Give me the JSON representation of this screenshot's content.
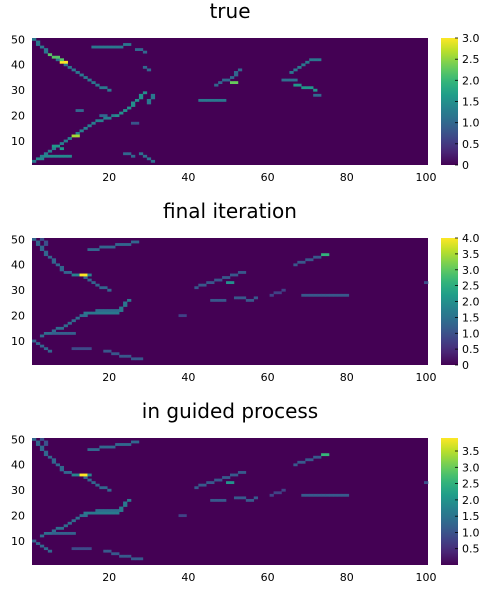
{
  "chart_data": [
    {
      "type": "heatmap",
      "title": "true",
      "x_ticks": [
        20,
        40,
        60,
        80,
        100
      ],
      "y_ticks": [
        10,
        20,
        30,
        40,
        50
      ],
      "xlim": [
        1,
        100
      ],
      "ylim": [
        1,
        50
      ],
      "colormap": "viridis",
      "clim": [
        0,
        3.0
      ],
      "colorbar_ticks": [
        "0",
        "0.5",
        "1.0",
        "1.5",
        "2.0",
        "2.5",
        "3.0"
      ],
      "colorbar_tick_values": [
        0,
        0.5,
        1.0,
        1.5,
        2.0,
        2.5,
        3.0
      ],
      "background_value": 0,
      "strokes": [
        {
          "pts": [
            [
              1,
              50
            ],
            [
              3,
              47
            ],
            [
              5,
              44
            ],
            [
              8,
              41
            ],
            [
              11,
              38
            ],
            [
              14,
              35
            ],
            [
              17,
              32
            ],
            [
              20,
              30
            ]
          ],
          "v": 1.2
        },
        {
          "pts": [
            [
              1,
              2
            ],
            [
              4,
              5
            ],
            [
              7,
              8
            ],
            [
              10,
              11
            ],
            [
              13,
              14
            ],
            [
              16,
              17
            ],
            [
              19,
              19
            ],
            [
              22,
              20
            ]
          ],
          "v": 1.3
        },
        {
          "pts": [
            [
              22,
              20
            ],
            [
              25,
              23
            ],
            [
              27,
              26
            ],
            [
              29,
              29
            ]
          ],
          "v": 1.5
        },
        {
          "pts": [
            [
              2,
              3
            ],
            [
              6,
              4
            ],
            [
              10,
              4
            ]
          ],
          "v": 1.4
        },
        {
          "pts": [
            [
              6,
              8
            ],
            [
              8,
              7
            ]
          ],
          "v": 1.6
        },
        {
          "pts": [
            [
              5,
              44
            ],
            [
              8,
              42
            ]
          ],
          "v": 2.2
        },
        {
          "pts": [
            [
              8,
              41
            ],
            [
              9,
              41
            ]
          ],
          "v": 3.0
        },
        {
          "pts": [
            [
              11,
              12
            ],
            [
              12,
              12
            ]
          ],
          "v": 2.6
        },
        {
          "pts": [
            [
              16,
              47
            ],
            [
              22,
              47
            ],
            [
              25,
              48
            ]
          ],
          "v": 1.2
        },
        {
          "pts": [
            [
              27,
              46
            ],
            [
              29,
              45
            ]
          ],
          "v": 1.0
        },
        {
          "pts": [
            [
              30,
              25
            ],
            [
              31,
              28
            ]
          ],
          "v": 1.2
        },
        {
          "pts": [
            [
              28,
              5
            ],
            [
              31,
              2
            ]
          ],
          "v": 1.1
        },
        {
          "pts": [
            [
              24,
              5
            ],
            [
              26,
              4
            ]
          ],
          "v": 1.0
        },
        {
          "pts": [
            [
              18,
              20
            ],
            [
              20,
              19
            ]
          ],
          "v": 1.0
        },
        {
          "pts": [
            [
              26,
              17
            ],
            [
              27,
              17
            ]
          ],
          "v": 0.8
        },
        {
          "pts": [
            [
              43,
              26
            ],
            [
              49,
              26
            ]
          ],
          "v": 1.2
        },
        {
          "pts": [
            [
              47,
              32
            ],
            [
              51,
              35
            ],
            [
              53,
              38
            ]
          ],
          "v": 1.0
        },
        {
          "pts": [
            [
              51,
              33
            ],
            [
              52,
              33
            ]
          ],
          "v": 2.3
        },
        {
          "pts": [
            [
              64,
              34
            ],
            [
              67,
              34
            ]
          ],
          "v": 1.1
        },
        {
          "pts": [
            [
              66,
              37
            ],
            [
              69,
              40
            ],
            [
              71,
              42
            ],
            [
              73,
              42
            ]
          ],
          "v": 1.2
        },
        {
          "pts": [
            [
              67,
              32
            ],
            [
              70,
              31
            ],
            [
              72,
              30
            ]
          ],
          "v": 1.6
        },
        {
          "pts": [
            [
              72,
              28
            ],
            [
              73,
              28
            ]
          ],
          "v": 1.0
        },
        {
          "pts": [
            [
              29,
              39
            ],
            [
              30,
              38
            ]
          ],
          "v": 1.0
        },
        {
          "pts": [
            [
              12,
              22
            ],
            [
              13,
              22
            ]
          ],
          "v": 1.0
        }
      ]
    },
    {
      "type": "heatmap",
      "title": "final iteration",
      "x_ticks": [
        20,
        40,
        60,
        80,
        100
      ],
      "y_ticks": [
        10,
        20,
        30,
        40,
        50
      ],
      "xlim": [
        1,
        100
      ],
      "ylim": [
        1,
        50
      ],
      "colormap": "viridis",
      "clim": [
        0,
        4.0
      ],
      "colorbar_ticks": [
        "0",
        "0.5",
        "1.0",
        "1.5",
        "2.0",
        "2.5",
        "3.0",
        "3.5",
        "4.0"
      ],
      "colorbar_tick_values": [
        0,
        0.5,
        1.0,
        1.5,
        2.0,
        2.5,
        3.0,
        3.5,
        4.0
      ],
      "background_value": 0,
      "strokes": [
        {
          "pts": [
            [
              1,
              50
            ],
            [
              3,
              46
            ],
            [
              5,
              43
            ],
            [
              7,
              40
            ],
            [
              9,
              37
            ],
            [
              12,
              36
            ],
            [
              14,
              35
            ],
            [
              17,
              32
            ],
            [
              20,
              30
            ]
          ],
          "v": 1.3
        },
        {
          "pts": [
            [
              11,
              36
            ],
            [
              15,
              36
            ]
          ],
          "v": 1.8
        },
        {
          "pts": [
            [
              13,
              36
            ],
            [
              14,
              36
            ]
          ],
          "v": 4.0
        },
        {
          "pts": [
            [
              1,
              10
            ],
            [
              3,
              8
            ],
            [
              5,
              6
            ]
          ],
          "v": 1.3
        },
        {
          "pts": [
            [
              3,
              12
            ],
            [
              6,
              14
            ],
            [
              9,
              16
            ],
            [
              12,
              19
            ],
            [
              15,
              21
            ],
            [
              18,
              22
            ],
            [
              22,
              22
            ]
          ],
          "v": 1.4
        },
        {
          "pts": [
            [
              14,
              21
            ],
            [
              22,
              21
            ],
            [
              23,
              23
            ],
            [
              25,
              26
            ]
          ],
          "v": 1.6
        },
        {
          "pts": [
            [
              5,
              13
            ],
            [
              11,
              13
            ]
          ],
          "v": 1.2
        },
        {
          "pts": [
            [
              15,
              46
            ],
            [
              20,
              47
            ],
            [
              27,
              49
            ]
          ],
          "v": 1.3
        },
        {
          "pts": [
            [
              3,
              50
            ],
            [
              4,
              48
            ]
          ],
          "v": 1.0
        },
        {
          "pts": [
            [
              19,
              6
            ],
            [
              23,
              4
            ],
            [
              28,
              3
            ]
          ],
          "v": 1.1
        },
        {
          "pts": [
            [
              11,
              7
            ],
            [
              15,
              7
            ]
          ],
          "v": 0.9
        },
        {
          "pts": [
            [
              42,
              31
            ],
            [
              46,
              33
            ],
            [
              50,
              35
            ],
            [
              54,
              37
            ]
          ],
          "v": 1.1
        },
        {
          "pts": [
            [
              46,
              26
            ],
            [
              49,
              26
            ]
          ],
          "v": 1.1
        },
        {
          "pts": [
            [
              52,
              27
            ],
            [
              56,
              26
            ],
            [
              57,
              27
            ]
          ],
          "v": 1.1
        },
        {
          "pts": [
            [
              50,
              33
            ],
            [
              51,
              33
            ]
          ],
          "v": 2.0
        },
        {
          "pts": [
            [
              61,
              28
            ],
            [
              64,
              30
            ]
          ],
          "v": 0.8
        },
        {
          "pts": [
            [
              67,
              40
            ],
            [
              71,
              42
            ],
            [
              75,
              44
            ]
          ],
          "v": 1.1
        },
        {
          "pts": [
            [
              74,
              44
            ],
            [
              75,
              44
            ]
          ],
          "v": 2.6
        },
        {
          "pts": [
            [
              69,
              28
            ],
            [
              80,
              28
            ]
          ],
          "v": 1.1
        },
        {
          "pts": [
            [
              100,
              33
            ],
            [
              100,
              33
            ]
          ],
          "v": 1.0
        },
        {
          "pts": [
            [
              38,
              20
            ],
            [
              39,
              20
            ]
          ],
          "v": 0.8
        }
      ]
    },
    {
      "type": "heatmap",
      "title": "in guided process",
      "x_ticks": [
        20,
        40,
        60,
        80,
        100
      ],
      "y_ticks": [
        10,
        20,
        30,
        40,
        50
      ],
      "xlim": [
        1,
        100
      ],
      "ylim": [
        1,
        50
      ],
      "colormap": "viridis",
      "clim": [
        0,
        3.9
      ],
      "colorbar_ticks": [
        "0.5",
        "1.0",
        "1.5",
        "2.0",
        "2.5",
        "3.0",
        "3.5"
      ],
      "colorbar_tick_values": [
        0.5,
        1.0,
        1.5,
        2.0,
        2.5,
        3.0,
        3.5
      ],
      "background_value": 0,
      "strokes": [
        {
          "pts": [
            [
              1,
              50
            ],
            [
              3,
              46
            ],
            [
              5,
              43
            ],
            [
              7,
              40
            ],
            [
              9,
              37
            ],
            [
              12,
              36
            ],
            [
              14,
              35
            ],
            [
              17,
              32
            ],
            [
              20,
              30
            ]
          ],
          "v": 1.3
        },
        {
          "pts": [
            [
              11,
              36
            ],
            [
              15,
              36
            ]
          ],
          "v": 1.8
        },
        {
          "pts": [
            [
              13,
              36
            ],
            [
              14,
              36
            ]
          ],
          "v": 3.9
        },
        {
          "pts": [
            [
              1,
              10
            ],
            [
              3,
              8
            ],
            [
              5,
              6
            ]
          ],
          "v": 1.3
        },
        {
          "pts": [
            [
              3,
              12
            ],
            [
              6,
              14
            ],
            [
              9,
              16
            ],
            [
              12,
              19
            ],
            [
              15,
              21
            ],
            [
              18,
              22
            ],
            [
              22,
              22
            ]
          ],
          "v": 1.4
        },
        {
          "pts": [
            [
              14,
              21
            ],
            [
              22,
              21
            ],
            [
              23,
              23
            ],
            [
              25,
              26
            ]
          ],
          "v": 1.6
        },
        {
          "pts": [
            [
              5,
              13
            ],
            [
              11,
              13
            ]
          ],
          "v": 1.2
        },
        {
          "pts": [
            [
              15,
              46
            ],
            [
              20,
              47
            ],
            [
              27,
              49
            ]
          ],
          "v": 1.3
        },
        {
          "pts": [
            [
              3,
              50
            ],
            [
              4,
              48
            ]
          ],
          "v": 1.0
        },
        {
          "pts": [
            [
              19,
              6
            ],
            [
              23,
              4
            ],
            [
              28,
              3
            ]
          ],
          "v": 1.1
        },
        {
          "pts": [
            [
              11,
              7
            ],
            [
              15,
              7
            ]
          ],
          "v": 0.9
        },
        {
          "pts": [
            [
              42,
              31
            ],
            [
              46,
              33
            ],
            [
              50,
              35
            ],
            [
              54,
              37
            ]
          ],
          "v": 1.1
        },
        {
          "pts": [
            [
              46,
              26
            ],
            [
              49,
              26
            ]
          ],
          "v": 1.1
        },
        {
          "pts": [
            [
              52,
              27
            ],
            [
              56,
              26
            ],
            [
              57,
              27
            ]
          ],
          "v": 1.1
        },
        {
          "pts": [
            [
              50,
              33
            ],
            [
              51,
              33
            ]
          ],
          "v": 2.0
        },
        {
          "pts": [
            [
              61,
              28
            ],
            [
              64,
              30
            ]
          ],
          "v": 0.8
        },
        {
          "pts": [
            [
              67,
              40
            ],
            [
              71,
              42
            ],
            [
              75,
              44
            ]
          ],
          "v": 1.1
        },
        {
          "pts": [
            [
              74,
              44
            ],
            [
              75,
              44
            ]
          ],
          "v": 2.6
        },
        {
          "pts": [
            [
              69,
              28
            ],
            [
              80,
              28
            ]
          ],
          "v": 1.1
        },
        {
          "pts": [
            [
              100,
              33
            ],
            [
              100,
              33
            ]
          ],
          "v": 1.0
        },
        {
          "pts": [
            [
              38,
              20
            ],
            [
              39,
              20
            ]
          ],
          "v": 0.8
        }
      ]
    }
  ]
}
